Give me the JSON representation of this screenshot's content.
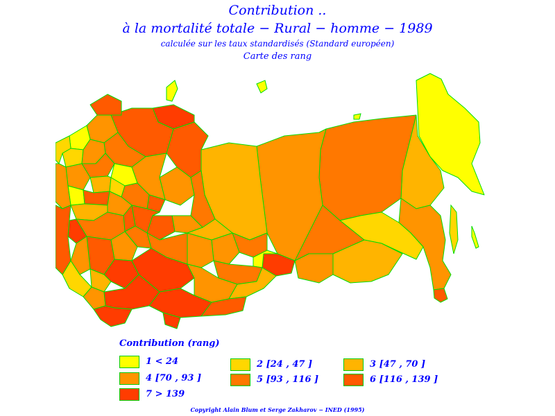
{
  "title": {
    "line1": "Contribution ..",
    "line2": "à la mortalité totale − Rural − homme − 1989",
    "line3": "calculée sur les taux standardisés (Standard européen)",
    "line4": "Carte des rang"
  },
  "legend": {
    "title": "Contribution (rang)",
    "items": [
      {
        "label": "1 < 24",
        "color": "#ffff00"
      },
      {
        "label": "2 [24 , 47 ]",
        "color": "#ffd700"
      },
      {
        "label": "3 [47 , 70 ]",
        "color": "#ffb400"
      },
      {
        "label": "4 [70 , 93 ]",
        "color": "#ff9400"
      },
      {
        "label": "5 [93 , 116 ]",
        "color": "#ff7800"
      },
      {
        "label": "6 [116 , 139 ]",
        "color": "#ff5a00"
      },
      {
        "label": "7 > 139",
        "color": "#ff3c00"
      }
    ]
  },
  "colors": {
    "text": "#0000ff",
    "border": "#00dd00",
    "background": "#ffffff"
  },
  "copyright": "Copyright Alain Blum et Serge Zakharov − INED (1995)"
}
